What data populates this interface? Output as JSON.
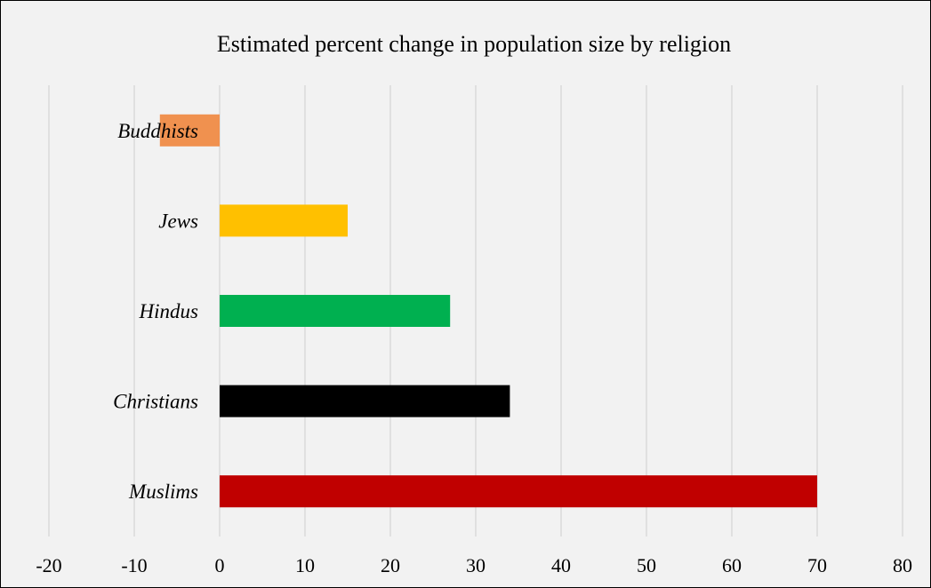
{
  "chart_data": {
    "type": "bar",
    "orientation": "horizontal",
    "title": "Estimated percent change in population size by religion",
    "xlabel": "",
    "ylabel": "",
    "categories": [
      "Buddhists",
      "Jews",
      "Hindus",
      "Christians",
      "Muslims"
    ],
    "values": [
      -7,
      15,
      27,
      34,
      70
    ],
    "colors": [
      "#f0914f",
      "#ffc000",
      "#00b050",
      "#000000",
      "#c00000"
    ],
    "xlim": [
      -20,
      80
    ],
    "xticks": [
      "-20",
      "-10",
      "0",
      "10",
      "20",
      "30",
      "40",
      "50",
      "60",
      "70",
      "80"
    ],
    "grid": true,
    "legend": "none"
  }
}
